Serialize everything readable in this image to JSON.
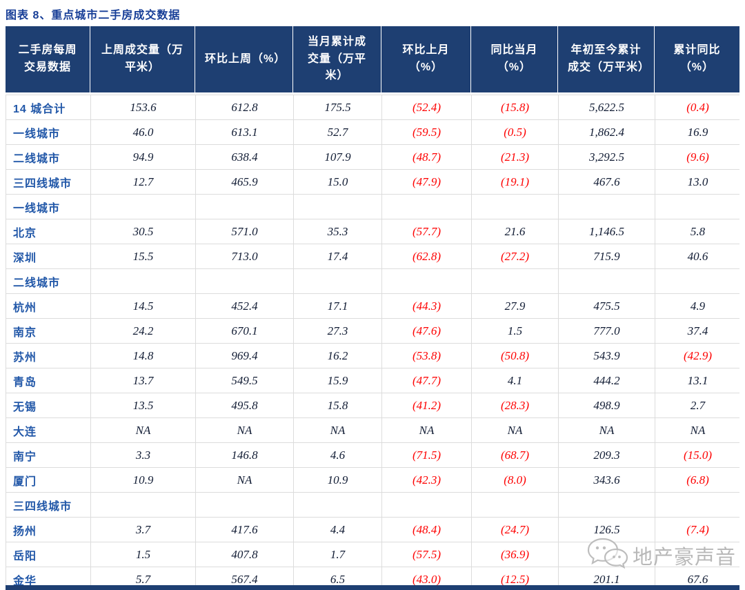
{
  "title": "图表 8、重点城市二手房成交数据",
  "colors": {
    "header_bg": "#1E3F72",
    "title_blue": "#173E97",
    "label_blue": "#2157A8",
    "value_dark": "#101B33",
    "negative_red": "#FE0000",
    "gridline": "#DCDCDC",
    "watermark_gray": "#B4B4B4"
  },
  "table": {
    "columns": [
      "二手房每周交易数据",
      "上周成交量（万平米）",
      "环比上周（%）",
      "当月累计成交量（万平米）",
      "环比上月（%）",
      "同比当月（%）",
      "年初至今累计成交（万平米）",
      "累计同比（%）"
    ],
    "rows": [
      {
        "label": "14 城合计",
        "type": "summary",
        "values": [
          "153.6",
          "612.8",
          "175.5",
          "(52.4)",
          "(15.8)",
          "5,622.5",
          "(0.4)"
        ]
      },
      {
        "label": "一线城市",
        "type": "summary",
        "values": [
          "46.0",
          "613.1",
          "52.7",
          "(59.5)",
          "(0.5)",
          "1,862.4",
          "16.9"
        ]
      },
      {
        "label": "二线城市",
        "type": "summary",
        "values": [
          "94.9",
          "638.4",
          "107.9",
          "(48.7)",
          "(21.3)",
          "3,292.5",
          "(9.6)"
        ]
      },
      {
        "label": "三四线城市",
        "type": "summary",
        "values": [
          "12.7",
          "465.9",
          "15.0",
          "(47.9)",
          "(19.1)",
          "467.6",
          "13.0"
        ]
      },
      {
        "label": "一线城市",
        "type": "section",
        "values": [
          "",
          "",
          "",
          "",
          "",
          "",
          ""
        ]
      },
      {
        "label": "北京",
        "type": "city",
        "values": [
          "30.5",
          "571.0",
          "35.3",
          "(57.7)",
          "21.6",
          "1,146.5",
          "5.8"
        ]
      },
      {
        "label": "深圳",
        "type": "city",
        "values": [
          "15.5",
          "713.0",
          "17.4",
          "(62.8)",
          "(27.2)",
          "715.9",
          "40.6"
        ]
      },
      {
        "label": "二线城市",
        "type": "section",
        "values": [
          "",
          "",
          "",
          "",
          "",
          "",
          ""
        ]
      },
      {
        "label": "杭州",
        "type": "city",
        "values": [
          "14.5",
          "452.4",
          "17.1",
          "(44.3)",
          "27.9",
          "475.5",
          "4.9"
        ]
      },
      {
        "label": "南京",
        "type": "city",
        "values": [
          "24.2",
          "670.1",
          "27.3",
          "(47.6)",
          "1.5",
          "777.0",
          "37.4"
        ]
      },
      {
        "label": "苏州",
        "type": "city",
        "values": [
          "14.8",
          "969.4",
          "16.2",
          "(53.8)",
          "(50.8)",
          "543.9",
          "(42.9)"
        ]
      },
      {
        "label": "青岛",
        "type": "city",
        "values": [
          "13.7",
          "549.5",
          "15.9",
          "(47.7)",
          "4.1",
          "444.2",
          "13.1"
        ]
      },
      {
        "label": "无锡",
        "type": "city",
        "values": [
          "13.5",
          "495.8",
          "15.8",
          "(41.2)",
          "(28.3)",
          "498.9",
          "2.7"
        ]
      },
      {
        "label": "大连",
        "type": "city",
        "values": [
          "NA",
          "NA",
          "NA",
          "NA",
          "NA",
          "NA",
          "NA"
        ]
      },
      {
        "label": "南宁",
        "type": "city",
        "values": [
          "3.3",
          "146.8",
          "4.6",
          "(71.5)",
          "(68.7)",
          "209.3",
          "(15.0)"
        ]
      },
      {
        "label": "厦门",
        "type": "city",
        "values": [
          "10.9",
          "NA",
          "10.9",
          "(42.3)",
          "(8.0)",
          "343.6",
          "(6.8)"
        ]
      },
      {
        "label": "三四线城市",
        "type": "section",
        "values": [
          "",
          "",
          "",
          "",
          "",
          "",
          ""
        ]
      },
      {
        "label": "扬州",
        "type": "city",
        "values": [
          "3.7",
          "417.6",
          "4.4",
          "(48.4)",
          "(24.7)",
          "126.5",
          "(7.4)"
        ]
      },
      {
        "label": "岳阳",
        "type": "city",
        "values": [
          "1.5",
          "407.8",
          "1.7",
          "(57.5)",
          "(36.9)",
          "",
          ""
        ]
      },
      {
        "label": "金华",
        "type": "city",
        "values": [
          "5.7",
          "567.4",
          "6.5",
          "(43.0)",
          "(12.5)",
          "201.1",
          "67.6"
        ]
      }
    ]
  },
  "watermark": {
    "text": "地产豪声音",
    "icon": "chat-bubbles-icon"
  }
}
